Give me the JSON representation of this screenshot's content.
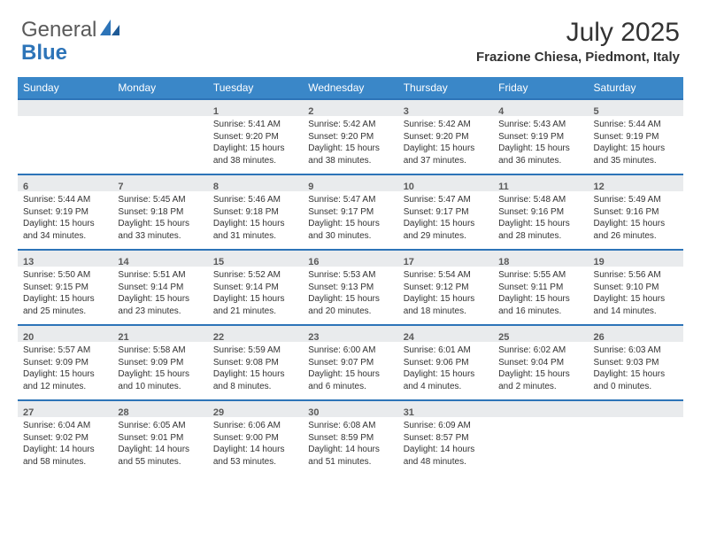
{
  "brand": {
    "part1": "General",
    "part2": "Blue"
  },
  "title": "July 2025",
  "location": "Frazione Chiesa, Piedmont, Italy",
  "colors": {
    "header_bg": "#3a87c8",
    "rule": "#2d74b8",
    "daynum_bg": "#e9ebed",
    "text": "#333333",
    "brand_gray": "#5a5a5a",
    "brand_blue": "#2d74b8"
  },
  "fonts": {
    "body_pt": 10,
    "daynum_pt": 11,
    "head_pt": 12,
    "title_pt": 30,
    "loc_pt": 15
  },
  "daynames": [
    "Sunday",
    "Monday",
    "Tuesday",
    "Wednesday",
    "Thursday",
    "Friday",
    "Saturday"
  ],
  "weeks": [
    [
      {
        "empty": true
      },
      {
        "empty": true
      },
      {
        "n": "1",
        "sunrise": "5:41 AM",
        "sunset": "9:20 PM",
        "daylight": "15 hours and 38 minutes."
      },
      {
        "n": "2",
        "sunrise": "5:42 AM",
        "sunset": "9:20 PM",
        "daylight": "15 hours and 38 minutes."
      },
      {
        "n": "3",
        "sunrise": "5:42 AM",
        "sunset": "9:20 PM",
        "daylight": "15 hours and 37 minutes."
      },
      {
        "n": "4",
        "sunrise": "5:43 AM",
        "sunset": "9:19 PM",
        "daylight": "15 hours and 36 minutes."
      },
      {
        "n": "5",
        "sunrise": "5:44 AM",
        "sunset": "9:19 PM",
        "daylight": "15 hours and 35 minutes."
      }
    ],
    [
      {
        "n": "6",
        "sunrise": "5:44 AM",
        "sunset": "9:19 PM",
        "daylight": "15 hours and 34 minutes."
      },
      {
        "n": "7",
        "sunrise": "5:45 AM",
        "sunset": "9:18 PM",
        "daylight": "15 hours and 33 minutes."
      },
      {
        "n": "8",
        "sunrise": "5:46 AM",
        "sunset": "9:18 PM",
        "daylight": "15 hours and 31 minutes."
      },
      {
        "n": "9",
        "sunrise": "5:47 AM",
        "sunset": "9:17 PM",
        "daylight": "15 hours and 30 minutes."
      },
      {
        "n": "10",
        "sunrise": "5:47 AM",
        "sunset": "9:17 PM",
        "daylight": "15 hours and 29 minutes."
      },
      {
        "n": "11",
        "sunrise": "5:48 AM",
        "sunset": "9:16 PM",
        "daylight": "15 hours and 28 minutes."
      },
      {
        "n": "12",
        "sunrise": "5:49 AM",
        "sunset": "9:16 PM",
        "daylight": "15 hours and 26 minutes."
      }
    ],
    [
      {
        "n": "13",
        "sunrise": "5:50 AM",
        "sunset": "9:15 PM",
        "daylight": "15 hours and 25 minutes."
      },
      {
        "n": "14",
        "sunrise": "5:51 AM",
        "sunset": "9:14 PM",
        "daylight": "15 hours and 23 minutes."
      },
      {
        "n": "15",
        "sunrise": "5:52 AM",
        "sunset": "9:14 PM",
        "daylight": "15 hours and 21 minutes."
      },
      {
        "n": "16",
        "sunrise": "5:53 AM",
        "sunset": "9:13 PM",
        "daylight": "15 hours and 20 minutes."
      },
      {
        "n": "17",
        "sunrise": "5:54 AM",
        "sunset": "9:12 PM",
        "daylight": "15 hours and 18 minutes."
      },
      {
        "n": "18",
        "sunrise": "5:55 AM",
        "sunset": "9:11 PM",
        "daylight": "15 hours and 16 minutes."
      },
      {
        "n": "19",
        "sunrise": "5:56 AM",
        "sunset": "9:10 PM",
        "daylight": "15 hours and 14 minutes."
      }
    ],
    [
      {
        "n": "20",
        "sunrise": "5:57 AM",
        "sunset": "9:09 PM",
        "daylight": "15 hours and 12 minutes."
      },
      {
        "n": "21",
        "sunrise": "5:58 AM",
        "sunset": "9:09 PM",
        "daylight": "15 hours and 10 minutes."
      },
      {
        "n": "22",
        "sunrise": "5:59 AM",
        "sunset": "9:08 PM",
        "daylight": "15 hours and 8 minutes."
      },
      {
        "n": "23",
        "sunrise": "6:00 AM",
        "sunset": "9:07 PM",
        "daylight": "15 hours and 6 minutes."
      },
      {
        "n": "24",
        "sunrise": "6:01 AM",
        "sunset": "9:06 PM",
        "daylight": "15 hours and 4 minutes."
      },
      {
        "n": "25",
        "sunrise": "6:02 AM",
        "sunset": "9:04 PM",
        "daylight": "15 hours and 2 minutes."
      },
      {
        "n": "26",
        "sunrise": "6:03 AM",
        "sunset": "9:03 PM",
        "daylight": "15 hours and 0 minutes."
      }
    ],
    [
      {
        "n": "27",
        "sunrise": "6:04 AM",
        "sunset": "9:02 PM",
        "daylight": "14 hours and 58 minutes."
      },
      {
        "n": "28",
        "sunrise": "6:05 AM",
        "sunset": "9:01 PM",
        "daylight": "14 hours and 55 minutes."
      },
      {
        "n": "29",
        "sunrise": "6:06 AM",
        "sunset": "9:00 PM",
        "daylight": "14 hours and 53 minutes."
      },
      {
        "n": "30",
        "sunrise": "6:08 AM",
        "sunset": "8:59 PM",
        "daylight": "14 hours and 51 minutes."
      },
      {
        "n": "31",
        "sunrise": "6:09 AM",
        "sunset": "8:57 PM",
        "daylight": "14 hours and 48 minutes."
      },
      {
        "empty": true
      },
      {
        "empty": true
      }
    ]
  ],
  "labels": {
    "sunrise": "Sunrise: ",
    "sunset": "Sunset: ",
    "daylight": "Daylight: "
  }
}
